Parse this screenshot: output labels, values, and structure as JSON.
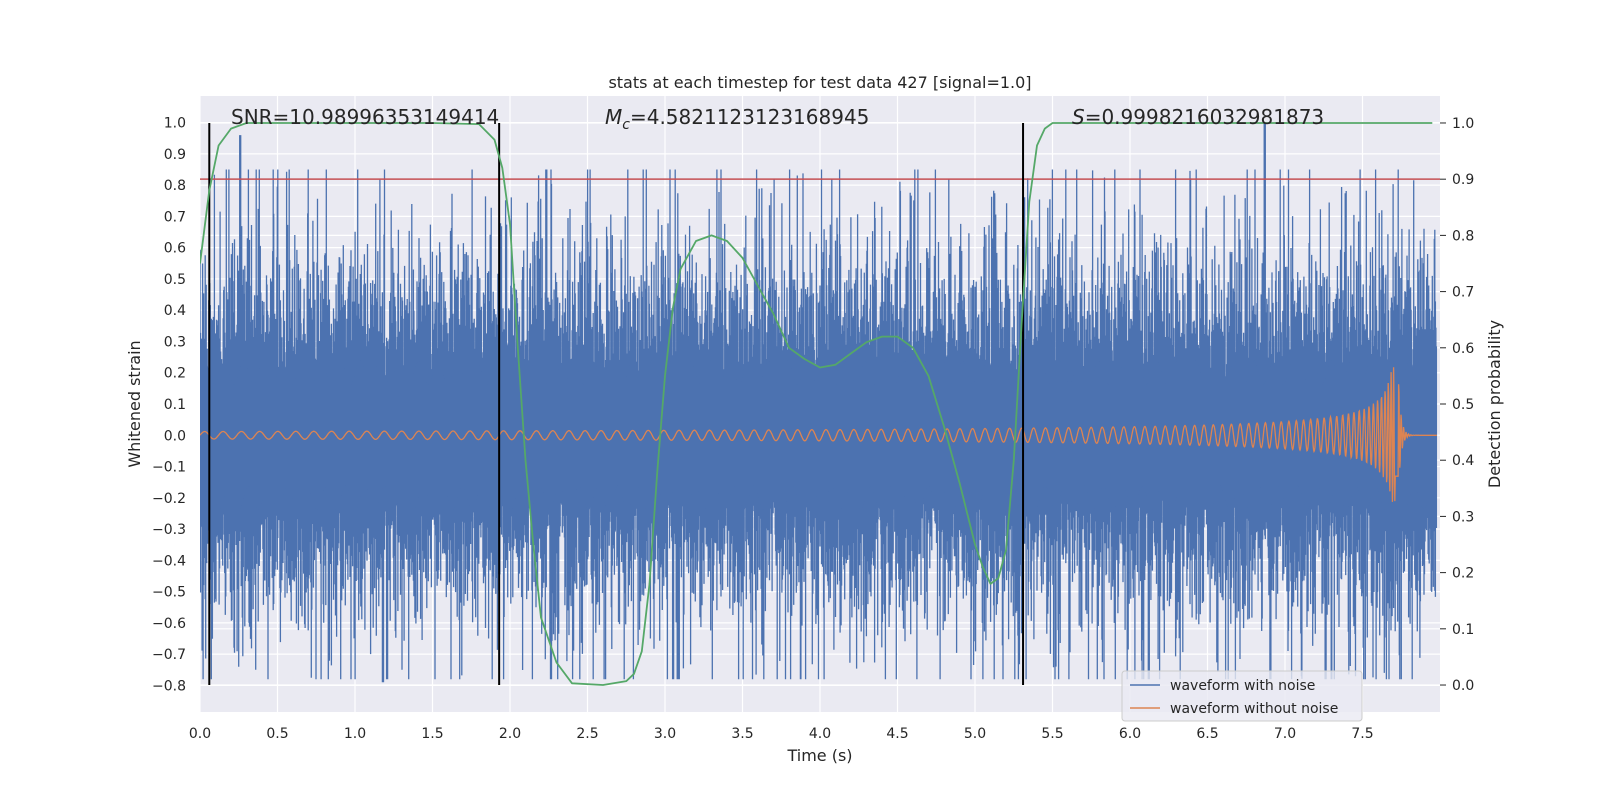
{
  "chart_data": {
    "type": "line",
    "title": "stats at each timestep for test data 427 [signal=1.0]",
    "xlabel": "Time (s)",
    "ylabel": "Whitened strain",
    "ylabel_right": "Detection probability",
    "xlim": [
      0.0,
      8.0
    ],
    "ylim": [
      -0.885,
      1.085
    ],
    "ylim_right": [
      -0.048,
      1.048
    ],
    "x_ticks": [
      "0.0",
      "0.5",
      "1.0",
      "1.5",
      "2.0",
      "2.5",
      "3.0",
      "3.5",
      "4.0",
      "4.5",
      "5.0",
      "5.5",
      "6.0",
      "6.5",
      "7.0",
      "7.5"
    ],
    "x_tick_values": [
      0,
      0.5,
      1,
      1.5,
      2,
      2.5,
      3,
      3.5,
      4,
      4.5,
      5,
      5.5,
      6,
      6.5,
      7,
      7.5
    ],
    "y_ticks": [
      "−0.8",
      "−0.7",
      "−0.6",
      "−0.5",
      "−0.4",
      "−0.3",
      "−0.2",
      "−0.1",
      "0.0",
      "0.1",
      "0.2",
      "0.3",
      "0.4",
      "0.5",
      "0.6",
      "0.7",
      "0.8",
      "0.9",
      "1.0"
    ],
    "y_tick_values": [
      -0.8,
      -0.7,
      -0.6,
      -0.5,
      -0.4,
      -0.3,
      -0.2,
      -0.1,
      0,
      0.1,
      0.2,
      0.3,
      0.4,
      0.5,
      0.6,
      0.7,
      0.8,
      0.9,
      1.0
    ],
    "y2_ticks": [
      "0.0",
      "0.1",
      "0.2",
      "0.3",
      "0.4",
      "0.5",
      "0.6",
      "0.7",
      "0.8",
      "0.9",
      "1.0"
    ],
    "y2_tick_values": [
      0,
      0.1,
      0.2,
      0.3,
      0.4,
      0.5,
      0.6,
      0.7,
      0.8,
      0.9,
      1.0
    ],
    "grid": true,
    "legend_position": "bottom-right",
    "annotations": {
      "snr": "SNR=10.98996353149414",
      "mc_symbol": "M",
      "mc_sub": "c",
      "mc_value": "=4.5821123123168945",
      "s_symbol": "S",
      "s_value": "=0.9998216032981873"
    },
    "vertical_lines_x": [
      0.06,
      1.93,
      5.31
    ],
    "threshold_line_y": 0.9,
    "colors": {
      "plot_bg": "#eaeaf2",
      "grid": "#ffffff",
      "noisy": "#4c72b0",
      "clean": "#dd8452",
      "probability": "#55a868",
      "threshold": "#c44e52",
      "vlines": "#000000"
    },
    "series": [
      {
        "name": "waveform with noise",
        "description_peaks": "noise band roughly ±0.4 with spikes up to 1.0 near t=6.87 and down to -0.79"
      },
      {
        "name": "waveform without noise",
        "chirp": {
          "amp_start": 0.012,
          "amp_end": 0.22,
          "merger_t": 7.73
        }
      },
      {
        "name": "detection probability",
        "x": [
          0.0,
          0.06,
          0.12,
          0.2,
          0.3,
          0.5,
          1.0,
          1.5,
          1.8,
          1.9,
          1.95,
          2.0,
          2.05,
          2.1,
          2.15,
          2.2,
          2.3,
          2.4,
          2.6,
          2.75,
          2.8,
          2.85,
          2.9,
          2.95,
          3.0,
          3.05,
          3.1,
          3.2,
          3.3,
          3.4,
          3.5,
          3.6,
          3.7,
          3.8,
          3.9,
          4.0,
          4.1,
          4.2,
          4.3,
          4.4,
          4.5,
          4.6,
          4.7,
          4.8,
          4.9,
          5.0,
          5.05,
          5.1,
          5.15,
          5.2,
          5.25,
          5.3,
          5.35,
          5.4,
          5.45,
          5.5,
          5.6,
          6.0,
          6.5,
          7.0,
          7.5,
          7.95
        ],
        "y": [
          0.75,
          0.88,
          0.96,
          0.99,
          1.0,
          1.0,
          1.0,
          1.0,
          0.998,
          0.97,
          0.92,
          0.82,
          0.6,
          0.4,
          0.25,
          0.12,
          0.04,
          0.003,
          0.0,
          0.007,
          0.02,
          0.06,
          0.18,
          0.38,
          0.55,
          0.67,
          0.74,
          0.79,
          0.8,
          0.79,
          0.76,
          0.71,
          0.66,
          0.6,
          0.58,
          0.565,
          0.57,
          0.59,
          0.61,
          0.62,
          0.62,
          0.6,
          0.55,
          0.46,
          0.36,
          0.25,
          0.21,
          0.18,
          0.19,
          0.24,
          0.4,
          0.64,
          0.86,
          0.96,
          0.99,
          1.0,
          1.0,
          1.0,
          1.0,
          1.0,
          1.0,
          1.0
        ]
      }
    ]
  }
}
